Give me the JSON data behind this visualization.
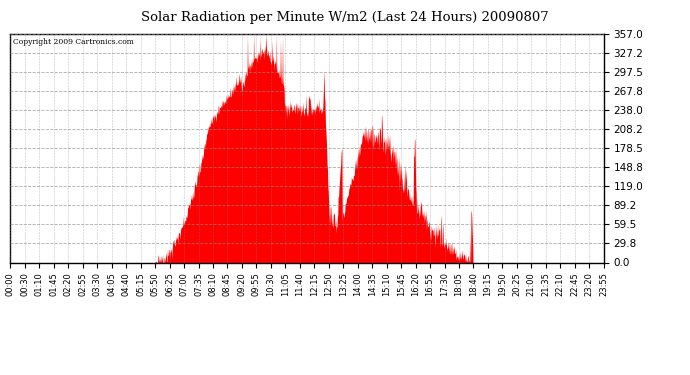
{
  "title": "Solar Radiation per Minute W/m2 (Last 24 Hours) 20090807",
  "copyright": "Copyright 2009 Cartronics.com",
  "fill_color": "#FF0000",
  "line_color": "#FF0000",
  "background_color": "#FFFFFF",
  "grid_color": "#888888",
  "yticks": [
    0.0,
    29.8,
    59.5,
    89.2,
    119.0,
    148.8,
    178.5,
    208.2,
    238.0,
    267.8,
    297.5,
    327.2,
    357.0
  ],
  "ymin": 0.0,
  "ymax": 357.0,
  "xtick_labels": [
    "00:00",
    "00:30",
    "01:10",
    "01:45",
    "02:20",
    "02:55",
    "03:30",
    "04:05",
    "04:40",
    "05:15",
    "05:50",
    "06:25",
    "07:00",
    "07:35",
    "08:10",
    "08:45",
    "09:20",
    "09:55",
    "10:30",
    "11:05",
    "11:40",
    "12:15",
    "12:50",
    "13:25",
    "14:00",
    "14:35",
    "15:10",
    "15:45",
    "16:20",
    "16:55",
    "17:30",
    "18:05",
    "18:40",
    "19:15",
    "19:50",
    "20:25",
    "21:00",
    "21:35",
    "22:10",
    "22:45",
    "23:20",
    "23:55"
  ]
}
